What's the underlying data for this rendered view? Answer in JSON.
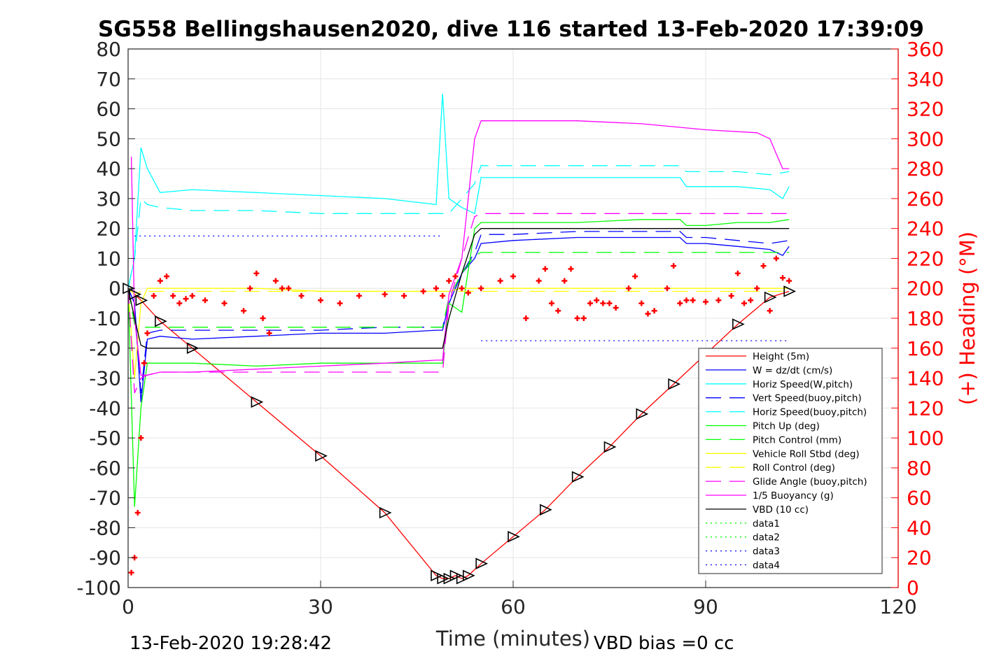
{
  "chart_data": {
    "type": "line",
    "title": "SG558 Bellingshausen2020, dive 116 started 13-Feb-2020 17:39:09",
    "xlabel": "Time (minutes)",
    "ylabel": "",
    "y2label": "(+) Heading (°M)",
    "xlim": [
      0,
      120
    ],
    "ylim": [
      -100,
      80
    ],
    "y2lim": [
      0,
      360
    ],
    "xticks": [
      0,
      30,
      60,
      90,
      120
    ],
    "yticks": [
      80,
      70,
      60,
      50,
      40,
      30,
      20,
      10,
      0,
      -10,
      -20,
      -30,
      -40,
      -50,
      -60,
      -70,
      -80,
      -90,
      -100
    ],
    "y2ticks": [
      360,
      340,
      320,
      300,
      280,
      260,
      240,
      220,
      200,
      180,
      160,
      140,
      120,
      100,
      80,
      60,
      40,
      20,
      0
    ],
    "grid": true,
    "legend_position": "bottom-right",
    "footer_left": "13-Feb-2020 19:28:42",
    "footer_right": "VBD bias =0 cc",
    "series": [
      {
        "name": "Height (5m)",
        "color": "#ff0000",
        "dash": "solid",
        "marker": "triangle",
        "x": [
          0,
          1,
          2,
          5,
          10,
          20,
          30,
          40,
          48,
          49,
          50,
          51,
          52,
          53,
          55,
          60,
          65,
          70,
          75,
          80,
          85,
          90,
          95,
          100,
          103
        ],
        "y": [
          0,
          -2,
          -4,
          -11,
          -20,
          -38,
          -56,
          -75,
          -96,
          -97,
          -97,
          -96,
          -97,
          -96,
          -92,
          -83,
          -74,
          -63,
          -53,
          -42,
          -32,
          -22,
          -12,
          -3,
          -1
        ]
      },
      {
        "name": "W = dz/dt (cm/s)",
        "color": "#0000ff",
        "dash": "solid",
        "x": [
          0,
          1,
          2,
          3,
          5,
          10,
          20,
          30,
          40,
          48,
          49,
          50,
          52,
          54,
          55,
          60,
          70,
          80,
          86,
          87,
          90,
          95,
          100,
          102,
          103
        ],
        "y": [
          0,
          -5,
          -38,
          -17,
          -16,
          -17,
          -16,
          -15,
          -15,
          -14,
          -14,
          -5,
          5,
          10,
          15,
          16,
          17,
          17,
          17,
          15,
          15,
          14,
          13,
          11,
          14
        ]
      },
      {
        "name": "Horiz Speed(W,pitch)",
        "color": "#00ffff",
        "dash": "solid",
        "x": [
          0,
          1,
          2,
          3,
          5,
          10,
          20,
          30,
          40,
          48,
          49,
          50,
          52,
          54,
          55,
          60,
          70,
          80,
          86,
          87,
          90,
          95,
          100,
          102,
          103
        ],
        "y": [
          0,
          10,
          47,
          40,
          32,
          33,
          32,
          31,
          30,
          28,
          65,
          30,
          27,
          25,
          37,
          37,
          37,
          37,
          37,
          34,
          34,
          34,
          33,
          30,
          34
        ]
      },
      {
        "name": "Vert Speed(buoy,pitch)",
        "color": "#0000ff",
        "dash": "dashed",
        "x": [
          0,
          1,
          2,
          3,
          5,
          10,
          20,
          30,
          40,
          48,
          49,
          50,
          52,
          54,
          55,
          60,
          70,
          80,
          86,
          87,
          90,
          95,
          100,
          103
        ],
        "y": [
          0,
          -5,
          -35,
          -15,
          -14,
          -14,
          -14,
          -14,
          -13,
          -13,
          -13,
          -5,
          5,
          12,
          18,
          18,
          19,
          19,
          19,
          17,
          17,
          16,
          15,
          16
        ]
      },
      {
        "name": "Horiz Speed(buoy,pitch)",
        "color": "#00ffff",
        "dash": "dashed",
        "x": [
          0,
          1,
          2,
          3,
          5,
          10,
          20,
          30,
          40,
          48,
          49,
          50,
          52,
          54,
          55,
          60,
          70,
          80,
          86,
          87,
          90,
          95,
          100,
          103
        ],
        "y": [
          0,
          10,
          30,
          28,
          27,
          26,
          26,
          25,
          25,
          25,
          25,
          25,
          30,
          35,
          41,
          41,
          41,
          41,
          41,
          39,
          39,
          39,
          38,
          39
        ]
      },
      {
        "name": "Pitch Up (deg)",
        "color": "#00ff00",
        "dash": "solid",
        "x": [
          0,
          1,
          2,
          3,
          5,
          10,
          20,
          30,
          40,
          48,
          49,
          50,
          52,
          54,
          55,
          60,
          70,
          80,
          86,
          87,
          90,
          95,
          100,
          103
        ],
        "y": [
          0,
          -73,
          -40,
          -25,
          -25,
          -25,
          -26,
          -25,
          -25,
          -25,
          -25,
          -5,
          -8,
          20,
          22,
          22,
          22,
          23,
          23,
          21,
          21,
          22,
          22,
          23
        ]
      },
      {
        "name": "Pitch Control (mm)",
        "color": "#00ff00",
        "dash": "dashed",
        "x": [
          0,
          1,
          2,
          3,
          5,
          10,
          20,
          30,
          40,
          48,
          49,
          50,
          52,
          54,
          55,
          60,
          70,
          80,
          86,
          87,
          90,
          95,
          100,
          103
        ],
        "y": [
          0,
          -12,
          -13,
          -13,
          -13,
          -13,
          -13,
          -13,
          -13,
          -13,
          -13,
          -3,
          5,
          11,
          12,
          12,
          12,
          12,
          12,
          12,
          12,
          12,
          12,
          12
        ]
      },
      {
        "name": "Vehicle Roll Stbd (deg)",
        "color": "#ffff00",
        "dash": "solid",
        "x": [
          0,
          1,
          2,
          3,
          5,
          10,
          20,
          30,
          40,
          48,
          49,
          50,
          52,
          54,
          55,
          60,
          70,
          80,
          86,
          87,
          90,
          95,
          100,
          103
        ],
        "y": [
          0,
          -30,
          -5,
          0,
          0,
          0,
          0,
          -1,
          -1,
          -1,
          -1,
          -1,
          0,
          0,
          0,
          0,
          0,
          0,
          0,
          0,
          0,
          0,
          0,
          0
        ]
      },
      {
        "name": "Roll Control (deg)",
        "color": "#ffff00",
        "dash": "dashed",
        "x": [
          0,
          1,
          2,
          3,
          5,
          10,
          20,
          30,
          40,
          48,
          49,
          50,
          52,
          54,
          55,
          60,
          70,
          80,
          86,
          87,
          90,
          95,
          100,
          103
        ],
        "y": [
          0,
          -2,
          -1,
          -1,
          -1,
          -1,
          -1,
          -1,
          -1,
          -1,
          -1,
          -1,
          -1,
          -1,
          -1,
          -1,
          -1,
          -1,
          -1,
          -1,
          -1,
          -1,
          -1,
          -1
        ]
      },
      {
        "name": "Glide Angle (buoy,pitch)",
        "color": "#ff00ff",
        "dash": "dashed",
        "x": [
          0,
          1,
          2,
          3,
          5,
          10,
          20,
          30,
          40,
          48,
          49,
          50,
          52,
          54,
          55,
          60,
          70,
          80,
          86,
          87,
          90,
          95,
          100,
          103
        ],
        "y": [
          0,
          -35,
          -30,
          -29,
          -28,
          -28,
          -28,
          -28,
          -28,
          -28,
          -28,
          -5,
          10,
          24,
          25,
          25,
          25,
          25,
          25,
          25,
          25,
          25,
          25,
          25
        ]
      },
      {
        "name": "1/5 Buoyancy (g)",
        "color": "#ff00ff",
        "dash": "solid",
        "x": [
          0.5,
          1,
          2,
          3,
          5,
          10,
          20,
          30,
          40,
          48,
          49,
          50,
          52,
          54,
          55,
          60,
          70,
          80,
          90,
          98,
          100,
          101,
          102,
          103
        ],
        "y": [
          44,
          -10,
          -29,
          -29,
          -28,
          -28,
          -27,
          -26,
          -25,
          -24,
          -24,
          -2,
          10,
          50,
          56,
          56,
          56,
          55,
          53,
          52,
          50,
          45,
          40,
          40
        ]
      },
      {
        "name": "VBD (10 cc)",
        "color": "#000000",
        "dash": "solid",
        "x": [
          0,
          1,
          2,
          3,
          5,
          10,
          20,
          30,
          40,
          48,
          49,
          50,
          52,
          54,
          55,
          60,
          70,
          80,
          90,
          100,
          103
        ],
        "y": [
          0,
          -10,
          -19,
          -20,
          -20,
          -20,
          -20,
          -20,
          -20,
          -20,
          -20,
          -10,
          5,
          18,
          20,
          20,
          20,
          20,
          20,
          20,
          20
        ]
      },
      {
        "name": "data1",
        "color": "#00ff00",
        "dash": "dotted",
        "x": [],
        "y": []
      },
      {
        "name": "data2",
        "color": "#00ff00",
        "dash": "dotted",
        "x": [],
        "y": []
      },
      {
        "name": "data3",
        "color": "#0000ff",
        "dash": "dotted",
        "x": [
          1,
          49
        ],
        "y": [
          17.5,
          17.5
        ]
      },
      {
        "name": "data4",
        "color": "#0000ff",
        "dash": "dotted",
        "x": [
          55,
          103
        ],
        "y": [
          -17.5,
          -17.5
        ]
      }
    ],
    "heading_series": {
      "axis": "right",
      "color": "#ff0000",
      "marker": "+",
      "x": [
        0.5,
        1,
        1.5,
        2,
        2.5,
        3,
        4,
        5,
        6,
        7,
        8,
        9,
        10,
        12,
        15,
        18,
        19,
        20,
        21,
        22,
        23,
        24,
        25,
        27,
        30,
        33,
        36,
        40,
        43,
        46,
        48,
        49,
        50,
        51,
        52,
        53,
        55,
        58,
        60,
        62,
        64,
        65,
        66,
        67,
        68,
        69,
        70,
        71,
        72,
        73,
        74,
        75,
        76,
        78,
        79,
        80,
        81,
        82,
        84,
        85,
        86,
        87,
        88,
        90,
        92,
        94,
        95,
        96,
        97,
        98,
        99,
        100,
        101,
        102,
        103
      ],
      "y": [
        10,
        20,
        50,
        100,
        150,
        170,
        195,
        205,
        208,
        195,
        190,
        193,
        195,
        192,
        190,
        185,
        200,
        210,
        180,
        170,
        205,
        200,
        200,
        195,
        192,
        190,
        195,
        196,
        195,
        198,
        200,
        195,
        205,
        208,
        200,
        197,
        200,
        205,
        208,
        180,
        205,
        213,
        190,
        185,
        205,
        213,
        180,
        180,
        190,
        192,
        190,
        190,
        187,
        200,
        208,
        190,
        183,
        185,
        200,
        215,
        190,
        192,
        192,
        191,
        192,
        195,
        210,
        190,
        192,
        200,
        215,
        185,
        220,
        207,
        205
      ]
    }
  }
}
